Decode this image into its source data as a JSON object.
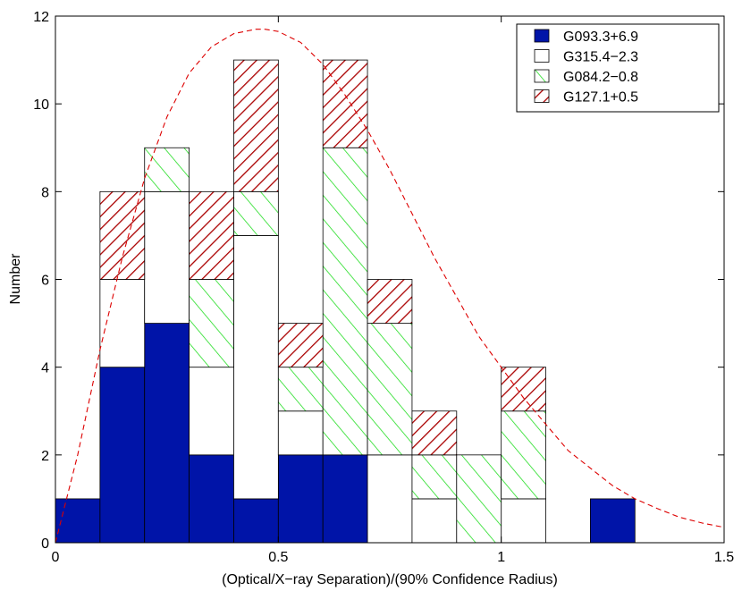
{
  "chart_data": {
    "type": "bar",
    "stacked": true,
    "bin_edges": [
      0,
      0.1,
      0.2,
      0.3,
      0.4,
      0.5,
      0.6,
      0.7,
      0.8,
      0.9,
      1.0,
      1.1,
      1.2,
      1.3
    ],
    "series": [
      {
        "name": "G093.3+6.9",
        "values": [
          1,
          4,
          5,
          2,
          1,
          2,
          2,
          0,
          0,
          0,
          0,
          0,
          1
        ],
        "color": "#0014a8",
        "pattern": "solid"
      },
      {
        "name": "G315.4−2.3",
        "values": [
          0,
          2,
          3,
          2,
          6,
          1,
          0,
          2,
          1,
          0,
          1,
          0,
          0
        ],
        "color": "#ffffff",
        "pattern": "empty"
      },
      {
        "name": "G084.2−0.8",
        "values": [
          0,
          0,
          1,
          2,
          1,
          1,
          7,
          3,
          1,
          2,
          2,
          0,
          0
        ],
        "color": "#22dd22",
        "pattern": "hatch-forward"
      },
      {
        "name": "G127.1+0.5",
        "values": [
          0,
          2,
          0,
          2,
          3,
          1,
          2,
          1,
          1,
          0,
          1,
          0,
          0
        ],
        "color": "#aa0000",
        "pattern": "hatch-back"
      }
    ],
    "curve": {
      "color": "#dd0000",
      "style": "dashed",
      "x": [
        0,
        0.05,
        0.1,
        0.15,
        0.2,
        0.25,
        0.3,
        0.35,
        0.4,
        0.45,
        0.47,
        0.5,
        0.55,
        0.6,
        0.65,
        0.7,
        0.75,
        0.8,
        0.85,
        0.9,
        0.95,
        1.0,
        1.05,
        1.1,
        1.15,
        1.2,
        1.25,
        1.3,
        1.35,
        1.4,
        1.45,
        1.5
      ],
      "y": [
        0,
        2.0,
        4.4,
        6.5,
        8.3,
        9.7,
        10.7,
        11.3,
        11.6,
        11.7,
        11.7,
        11.65,
        11.4,
        10.9,
        10.2,
        9.4,
        8.5,
        7.5,
        6.5,
        5.6,
        4.7,
        4.0,
        3.3,
        2.7,
        2.1,
        1.7,
        1.3,
        1.0,
        0.78,
        0.58,
        0.45,
        0.35
      ]
    },
    "xlabel": "(Optical/X−ray Separation)/(90% Confidence Radius)",
    "ylabel": "Number",
    "xlim": [
      0,
      1.5
    ],
    "ylim": [
      0,
      12
    ],
    "xticks": [
      0,
      0.5,
      1,
      1.5
    ],
    "xtick_labels": [
      "0",
      "0.5",
      "1",
      "1.5"
    ],
    "yticks": [
      0,
      2,
      4,
      6,
      8,
      10,
      12
    ],
    "ytick_labels": [
      "0",
      "2",
      "4",
      "6",
      "8",
      "10",
      "12"
    ],
    "legend_position": "top-right",
    "grid": false
  }
}
